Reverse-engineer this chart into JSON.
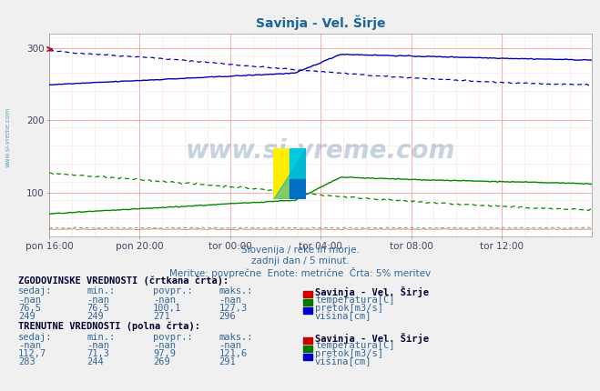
{
  "title": "Savinja - Vel. Širje",
  "title_color": "#1a6699",
  "bg_color": "#f0f0f0",
  "plot_bg_color": "#ffffff",
  "grid_color_major": "#ffaaaa",
  "grid_color_minor": "#ffdddd",
  "xlabel_ticks": [
    "pon 16:00",
    "pon 20:00",
    "tor 00:00",
    "tor 04:00",
    "tor 08:00",
    "tor 12:00"
  ],
  "ylabel_ticks": [
    100,
    200,
    300
  ],
  "ymin": 40,
  "ymax": 320,
  "xmin": 0,
  "xmax": 287,
  "subtitle1": "Slovenija / reke in morje.",
  "subtitle2": "zadnji dan / 5 minut.",
  "subtitle3": "Meritve: povprečne  Enote: metrične  Črta: 5% meritev",
  "subtitle_color": "#336699",
  "watermark": "www.si-vreme.com",
  "watermark_color": "#336699",
  "table_header1": "ZGODOVINSKE VREDNOSTI (črtkana črta):",
  "table_header2": "TRENUTNE VREDNOSTI (polna črta):",
  "table_col_headers": [
    "sedaj:",
    "min.:",
    "povpr.:",
    "maks.:"
  ],
  "hist_rows": [
    [
      "-nan",
      "-nan",
      "-nan",
      "-nan",
      "#cc0000",
      "temperatura[C]"
    ],
    [
      "76,5",
      "76,5",
      "100,1",
      "127,3",
      "#007700",
      "pretok[m3/s]"
    ],
    [
      "249",
      "249",
      "271",
      "296",
      "#0000cc",
      "višina[cm]"
    ]
  ],
  "curr_rows": [
    [
      "-nan",
      "-nan",
      "-nan",
      "-nan",
      "#cc0000",
      "temperatura[C]"
    ],
    [
      "112,7",
      "71,3",
      "97,9",
      "121,6",
      "#007700",
      "pretok[m3/s]"
    ],
    [
      "283",
      "244",
      "269",
      "291",
      "#0000cc",
      "višina[cm]"
    ]
  ],
  "station_name": "Savinja - Vel. Širje",
  "n_points": 288,
  "line_color_blue": "#0000bb",
  "line_color_green": "#008800",
  "line_color_red": "#cc0000",
  "arrow_color": "#cc0000",
  "sidebar_text": "www.si-vreme.com",
  "sidebar_color": "#4488aa"
}
